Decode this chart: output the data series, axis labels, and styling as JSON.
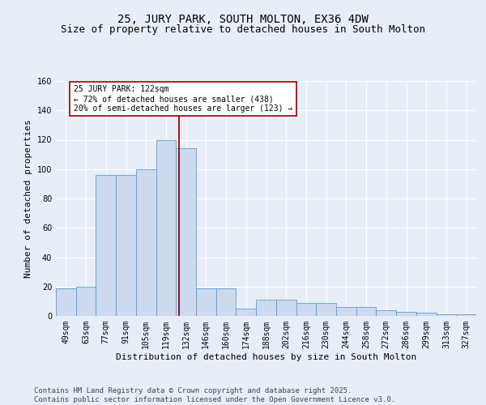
{
  "title": "25, JURY PARK, SOUTH MOLTON, EX36 4DW",
  "subtitle": "Size of property relative to detached houses in South Molton",
  "xlabel": "Distribution of detached houses by size in South Molton",
  "ylabel": "Number of detached properties",
  "bin_labels": [
    "49sqm",
    "63sqm",
    "77sqm",
    "91sqm",
    "105sqm",
    "119sqm",
    "132sqm",
    "146sqm",
    "160sqm",
    "174sqm",
    "188sqm",
    "202sqm",
    "216sqm",
    "230sqm",
    "244sqm",
    "258sqm",
    "272sqm",
    "286sqm",
    "299sqm",
    "313sqm",
    "327sqm"
  ],
  "bar_values": [
    19,
    20,
    96,
    96,
    100,
    120,
    114,
    19,
    19,
    5,
    11,
    11,
    9,
    9,
    6,
    6,
    4,
    3,
    2,
    1,
    1
  ],
  "bar_color": "#ccd9ee",
  "bar_edge_color": "#6699cc",
  "vline_pos": 5.67,
  "vline_color": "#990000",
  "annotation_text": "25 JURY PARK: 122sqm\n← 72% of detached houses are smaller (438)\n20% of semi-detached houses are larger (123) →",
  "annotation_box_facecolor": "#ffffff",
  "annotation_box_edgecolor": "#990000",
  "ylim": [
    0,
    160
  ],
  "yticks": [
    0,
    20,
    40,
    60,
    80,
    100,
    120,
    140,
    160
  ],
  "footer_text": "Contains HM Land Registry data © Crown copyright and database right 2025.\nContains public sector information licensed under the Open Government Licence v3.0.",
  "bg_color": "#e8eef8",
  "plot_bg_color": "#e8eef8",
  "title_fontsize": 10,
  "subtitle_fontsize": 9,
  "xlabel_fontsize": 8,
  "ylabel_fontsize": 8,
  "tick_fontsize": 7,
  "footer_fontsize": 6.5,
  "annot_fontsize": 7
}
